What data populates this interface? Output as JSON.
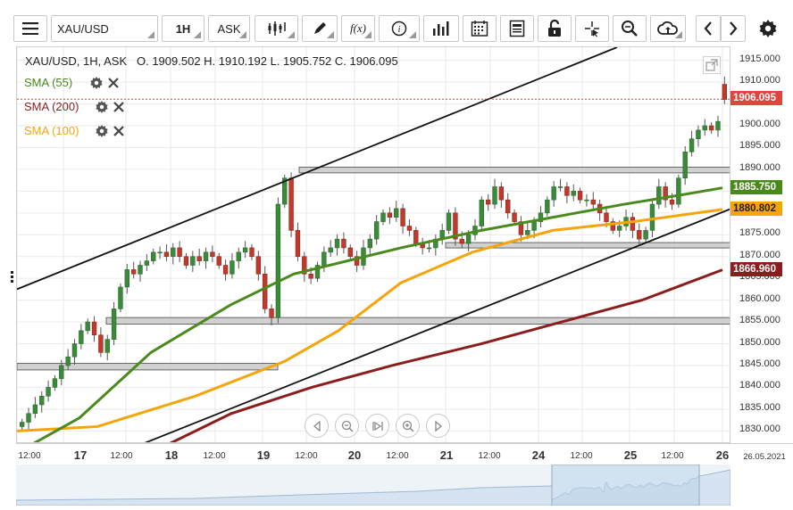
{
  "toolbar": {
    "symbol": "XAU/USD",
    "timeframe": "1H",
    "price_type": "ASK",
    "icons": [
      "menu-icon",
      "candlestick-icon",
      "pencil-icon",
      "function-icon",
      "info-icon",
      "bar-chart-icon",
      "calendar-icon",
      "news-icon",
      "lock-icon",
      "crosshair-icon",
      "zoom-icon",
      "cloud-icon",
      "chevron-left-icon",
      "chevron-right-icon",
      "gear-icon"
    ]
  },
  "legend": {
    "ohlc": "XAU/USD, 1H, ASK   O. 1909.502 H. 1910.192 L. 1905.752 C. 1906.095",
    "indicators": [
      {
        "name": "SMA (55)",
        "color": "#4a8a1c"
      },
      {
        "name": "SMA (200)",
        "color": "#8c1d1d"
      },
      {
        "name": "SMA (100)",
        "color": "#f5a50a"
      }
    ]
  },
  "price_labels": {
    "last": "1906.095",
    "sma55": "1885.750",
    "sma100": "1880.802",
    "sma200": "1866.960",
    "last_color": "#e0443a",
    "sma55_color": "#4a8a1c",
    "sma100_color": "#f5a50a",
    "sma200_color": "#8c1d1d"
  },
  "chart_data": {
    "type": "candlestick",
    "symbol": "XAU/USD",
    "interval": "1H",
    "ylim": [
      1827,
      1918
    ],
    "y_ticks": [
      1830,
      1835,
      1840,
      1845,
      1850,
      1855,
      1860,
      1865,
      1870,
      1875,
      1880,
      1885,
      1890,
      1895,
      1900,
      1905,
      1910,
      1915
    ],
    "x_labels": [
      "12:00",
      "17",
      "12:00",
      "18",
      "12:00",
      "19",
      "12:00",
      "20",
      "12:00",
      "21",
      "12:00",
      "24",
      "12:00",
      "25",
      "12:00",
      "26",
      "26.05.2021"
    ],
    "last_ohlc": {
      "open": 1909.502,
      "high": 1910.192,
      "low": 1905.752,
      "close": 1906.095
    },
    "close_series": [
      1832,
      1834,
      1836,
      1838,
      1840,
      1842,
      1845,
      1847,
      1850,
      1853,
      1855,
      1852,
      1848,
      1851,
      1858,
      1863,
      1867,
      1866,
      1868,
      1869,
      1871,
      1871,
      1870,
      1872,
      1870,
      1868,
      1870,
      1869,
      1871,
      1870,
      1868,
      1866,
      1869,
      1871,
      1872,
      1870,
      1866,
      1858,
      1856,
      1882,
      1888,
      1876,
      1870,
      1866,
      1865,
      1868,
      1871,
      1872,
      1874,
      1872,
      1870,
      1868,
      1872,
      1874,
      1878,
      1880,
      1879,
      1881,
      1877,
      1876,
      1873,
      1872,
      1872,
      1874,
      1876,
      1880,
      1874,
      1873,
      1875,
      1877,
      1883,
      1882,
      1886,
      1883,
      1880,
      1878,
      1875,
      1876,
      1878,
      1880,
      1883,
      1886,
      1886,
      1884,
      1885,
      1883,
      1883,
      1882,
      1880,
      1878,
      1876,
      1877,
      1879,
      1876,
      1874,
      1876,
      1882,
      1886,
      1883,
      1882,
      1888,
      1894,
      1897,
      1899,
      1900,
      1899,
      1901,
      1906
    ],
    "sma_55": [
      [
        0,
        1825
      ],
      [
        70,
        1833
      ],
      [
        150,
        1848
      ],
      [
        240,
        1859
      ],
      [
        310,
        1866
      ],
      [
        370,
        1869
      ],
      [
        430,
        1872
      ],
      [
        520,
        1876
      ],
      [
        600,
        1879
      ],
      [
        680,
        1882
      ],
      [
        740,
        1884
      ],
      [
        790,
        1885.75
      ]
    ],
    "sma_100": [
      [
        0,
        1830
      ],
      [
        90,
        1831
      ],
      [
        200,
        1838
      ],
      [
        300,
        1846
      ],
      [
        360,
        1853
      ],
      [
        430,
        1864
      ],
      [
        510,
        1871
      ],
      [
        600,
        1876
      ],
      [
        690,
        1878
      ],
      [
        790,
        1880.8
      ]
    ],
    "sma_200": [
      [
        160,
        1826
      ],
      [
        240,
        1834
      ],
      [
        330,
        1840
      ],
      [
        420,
        1845
      ],
      [
        520,
        1850
      ],
      [
        610,
        1855
      ],
      [
        700,
        1860
      ],
      [
        790,
        1866.96
      ]
    ],
    "trendlines": [
      {
        "from": [
          0,
          1862.5
        ],
        "to": [
          672,
          1918
        ]
      },
      {
        "from": [
          128,
          1826
        ],
        "to": [
          800,
          1881
        ]
      }
    ],
    "zones": [
      {
        "x0": 0,
        "x1": 292,
        "y0": 1844,
        "y1": 1845.5
      },
      {
        "x0": 100,
        "x1": 800,
        "y0": 1854.5,
        "y1": 1856
      },
      {
        "x0": 316,
        "x1": 800,
        "y0": 1889.2,
        "y1": 1890.5
      },
      {
        "x0": 480,
        "x1": 800,
        "y0": 1872,
        "y1": 1873.2
      }
    ],
    "grid": true
  }
}
